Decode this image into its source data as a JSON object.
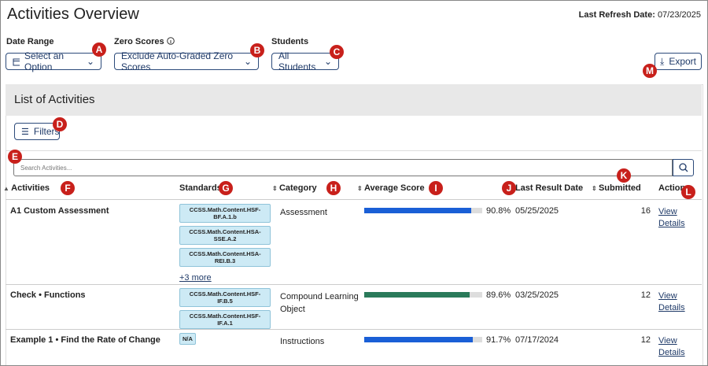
{
  "header": {
    "title": "Activities Overview",
    "refresh_label": "Last Refresh Date:",
    "refresh_date": "07/23/2025"
  },
  "filters": [
    {
      "label": "Date Range",
      "value": "Select an Option"
    },
    {
      "label": "Zero Scores",
      "value": "Exclude Auto-Graded Zero Scores"
    },
    {
      "label": "Students",
      "value": "All Students"
    }
  ],
  "export": "Export",
  "panel": {
    "title": "List of Activities",
    "filters_button": "Filters",
    "search_placeholder": "Search Activities..."
  },
  "table": {
    "columns": [
      "Activities",
      "Standards",
      "Category",
      "Average Score",
      "Last Result Date",
      "Submitted",
      "Action"
    ],
    "score_range": [
      0,
      100
    ],
    "rows": [
      {
        "activity": "A1 Custom Assessment",
        "standards": [
          "CCSS.Math.Content.HSF-BF.A.1.b",
          "CCSS.Math.Content.HSA-SSE.A.2",
          "CCSS.Math.Content.HSA-REI.B.3"
        ],
        "more": "+3 more",
        "category": "Assessment",
        "score": 90.8,
        "score_label": "90.8%",
        "color": "#1a5fd6",
        "date": "05/25/2025",
        "submitted": 16,
        "action": "View Details"
      },
      {
        "activity": "Check • Functions",
        "standards": [
          "CCSS.Math.Content.HSF-IF.B.5",
          "CCSS.Math.Content.HSF-IF.A.1"
        ],
        "category": "Compound Learning Object",
        "score": 89.6,
        "score_label": "89.6%",
        "color": "#2a7a5a",
        "date": "03/25/2025",
        "submitted": 12,
        "action": "View Details"
      },
      {
        "activity": "Example 1 • Find the Rate of Change",
        "standards": [
          "N/A"
        ],
        "category": "Instructions",
        "score": 91.7,
        "score_label": "91.7%",
        "color": "#1a5fd6",
        "date": "07/17/2024",
        "submitted": 12,
        "action": "View Details"
      }
    ]
  },
  "callouts": [
    "A",
    "B",
    "C",
    "D",
    "E",
    "F",
    "G",
    "H",
    "I",
    "J",
    "K",
    "L",
    "M"
  ]
}
